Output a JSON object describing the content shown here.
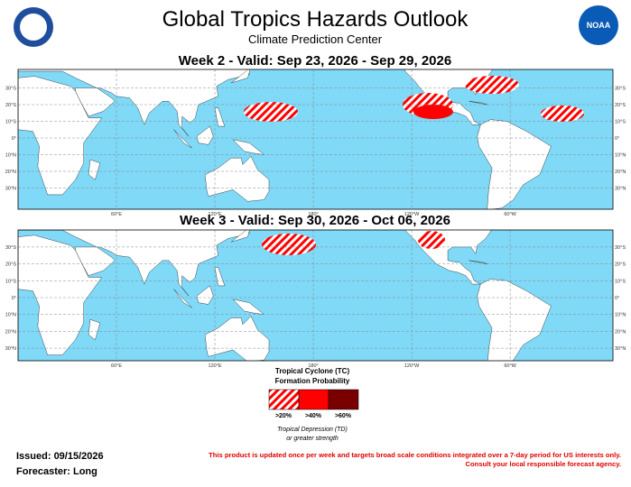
{
  "header": {
    "title": "Global Tropics Hazards Outlook",
    "subtitle": "Climate Prediction Center",
    "logo_text": "NOAA"
  },
  "maps": [
    {
      "title": "Week 2 - Valid: Sep 23, 2026 - Sep 29, 2026"
    },
    {
      "title": "Week 3 - Valid: Sep 30, 2026 - Oct 06, 2026"
    }
  ],
  "lat_labels": [
    "30°N",
    "20°N",
    "10°N",
    "0°",
    "10°S",
    "20°S",
    "30°S"
  ],
  "lon_labels": [
    "60°E",
    "120°E",
    "180°",
    "120°W",
    "60°W"
  ],
  "legend": {
    "title": "Tropical Cyclone (TC)",
    "subtitle": "Formation Probability",
    "levels": [
      ">20%",
      ">40%",
      ">60%"
    ],
    "note": "Tropical Depression (TD)",
    "note2": "or greater strength"
  },
  "footer": {
    "issued": "Issued: 09/15/2026",
    "forecaster": "Forecaster: Long",
    "disclaimer": [
      "This product is updated once per week and targets broad scale conditions integrated over a 7-day period for US interests only.",
      "Consult your local responsible forecast agency."
    ]
  }
}
